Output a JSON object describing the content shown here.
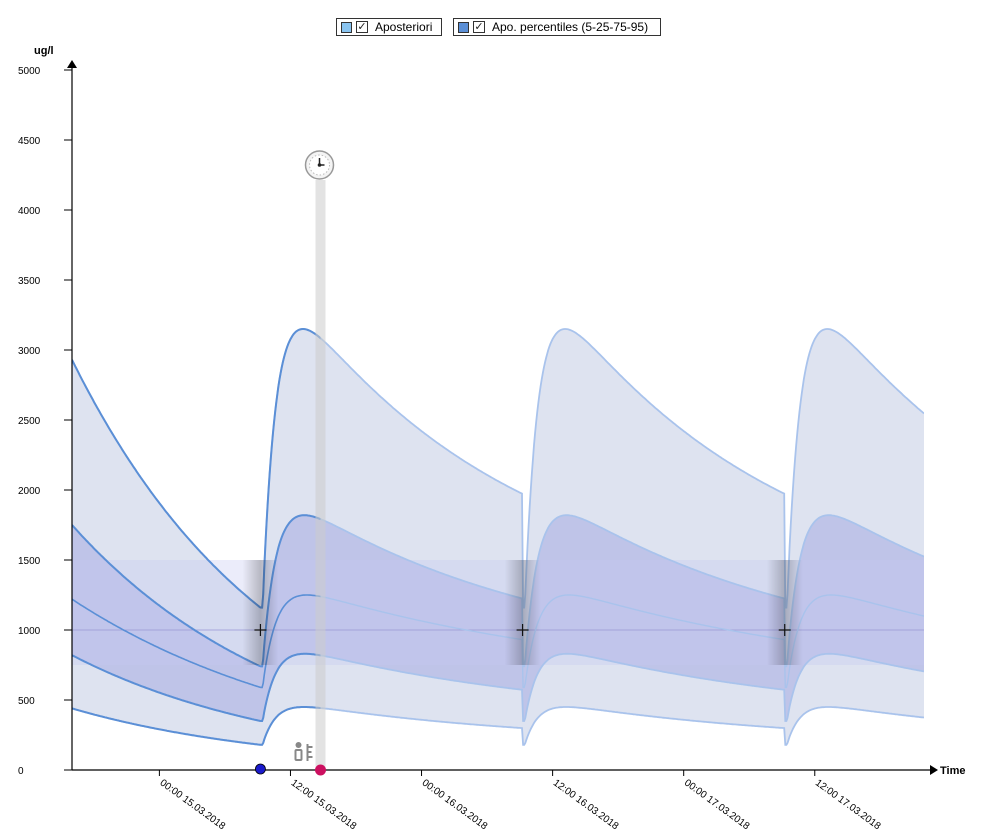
{
  "legend": {
    "items": [
      {
        "label": "Aposteriori",
        "color": "#89c4f0",
        "checked": "✓"
      },
      {
        "label": "Apo. percentiles (5-25-75-95)",
        "color": "#5b8fd6",
        "checked": "✓"
      }
    ]
  },
  "colors": {
    "outer_band": "#dce2ef",
    "inner_band": "#b4b9e5",
    "target_band": "#c6c9f2",
    "line_dark": "#5b8fd6",
    "line_light": "#a9c3ec",
    "cursor": "#cccccc",
    "dose_marker": "#1a1acc",
    "measure_marker": "#cc1060"
  },
  "chart_data": {
    "type": "area",
    "title": "",
    "ylabel": "ug/l",
    "xlabel": "Time",
    "ylim": [
      0,
      5000
    ],
    "yticks": [
      0,
      500,
      1000,
      1500,
      2000,
      2500,
      3000,
      3500,
      4000,
      4500,
      5000
    ],
    "x_unit": "hours",
    "xlim": [
      "2018-03-14T16:00",
      "2018-03-17T22:00"
    ],
    "xticks": [
      {
        "x": "2018-03-15T00:00",
        "label": "00:00 15.03.2018"
      },
      {
        "x": "2018-03-15T12:00",
        "label": "12:00 15.03.2018"
      },
      {
        "x": "2018-03-16T00:00",
        "label": "00:00 16.03.2018"
      },
      {
        "x": "2018-03-16T12:00",
        "label": "12:00 16.03.2018"
      },
      {
        "x": "2018-03-17T00:00",
        "label": "00:00 17.03.2018"
      },
      {
        "x": "2018-03-17T12:00",
        "label": "12:00 17.03.2018"
      }
    ],
    "target_range": [
      750,
      1500
    ],
    "target_line": 1000,
    "dose_times": [
      "2018-03-15T09:15",
      "2018-03-16T09:15",
      "2018-03-17T09:15"
    ],
    "cursor_time": "2018-03-15T14:45",
    "measure_time": "2018-03-15T14:45",
    "dose_marker_time": "2018-03-15T09:15",
    "series": [
      {
        "name": "p95",
        "peak": 3150,
        "trough": 1160,
        "start": 2930,
        "end": 2950
      },
      {
        "name": "p75",
        "peak": 1820,
        "trough": 740,
        "start": 1750,
        "end": 1750
      },
      {
        "name": "median",
        "peak": 1250,
        "trough": 590,
        "start": 1220,
        "end": 1220
      },
      {
        "name": "p25",
        "peak": 830,
        "trough": 350,
        "start": 820,
        "end": 820
      },
      {
        "name": "p5",
        "peak": 450,
        "trough": 180,
        "start": 440,
        "end": 440
      }
    ]
  }
}
